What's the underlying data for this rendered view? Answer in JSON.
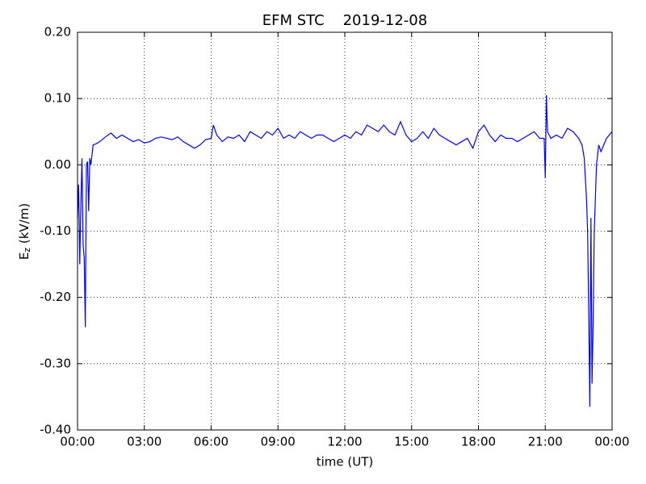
{
  "chart_data": {
    "type": "line",
    "title": "EFM STC    2019-12-08",
    "xlabel": "time (UT)",
    "ylabel": "E",
    "ylabel_subscript": "z",
    "ylabel_unit": " (kV/m)",
    "xlim": [
      0,
      24
    ],
    "xticks": [
      {
        "value": 0,
        "label": "00:00"
      },
      {
        "value": 3,
        "label": "03:00"
      },
      {
        "value": 6,
        "label": "06:00"
      },
      {
        "value": 9,
        "label": "09:00"
      },
      {
        "value": 12,
        "label": "12:00"
      },
      {
        "value": 15,
        "label": "15:00"
      },
      {
        "value": 18,
        "label": "18:00"
      },
      {
        "value": 21,
        "label": "21:00"
      },
      {
        "value": 24,
        "label": "00:00"
      }
    ],
    "ylim": [
      -0.4,
      0.2
    ],
    "yticks": [
      {
        "value": -0.4,
        "label": "-0.40"
      },
      {
        "value": -0.3,
        "label": "-0.30"
      },
      {
        "value": -0.2,
        "label": "-0.20"
      },
      {
        "value": -0.1,
        "label": "-0.10"
      },
      {
        "value": 0,
        "label": "0.00"
      },
      {
        "value": 0.1,
        "label": "0.10"
      },
      {
        "value": 0.2,
        "label": "0.20"
      }
    ],
    "grid": true,
    "x": [
      0,
      0.05,
      0.1,
      0.15,
      0.2,
      0.25,
      0.3,
      0.35,
      0.4,
      0.45,
      0.5,
      0.55,
      0.6,
      0.7,
      0.85,
      1,
      1.25,
      1.5,
      1.75,
      2,
      2.25,
      2.5,
      2.75,
      3,
      3.25,
      3.5,
      3.75,
      4,
      4.25,
      4.5,
      4.75,
      5,
      5.25,
      5.5,
      5.75,
      6,
      6.1,
      6.25,
      6.5,
      6.75,
      7,
      7.25,
      7.5,
      7.75,
      8,
      8.25,
      8.5,
      8.75,
      9,
      9.25,
      9.5,
      9.75,
      10,
      10.25,
      10.5,
      10.75,
      11,
      11.25,
      11.5,
      11.75,
      12,
      12.25,
      12.5,
      12.75,
      13,
      13.25,
      13.5,
      13.75,
      14,
      14.25,
      14.5,
      14.75,
      15,
      15.25,
      15.5,
      15.75,
      16,
      16.25,
      16.5,
      16.75,
      17,
      17.25,
      17.5,
      17.75,
      18,
      18.25,
      18.5,
      18.75,
      19,
      19.25,
      19.5,
      19.75,
      20,
      20.25,
      20.5,
      20.75,
      20.95,
      21,
      21.05,
      21.1,
      21.25,
      21.5,
      21.75,
      22,
      22.25,
      22.5,
      22.65,
      22.75,
      22.85,
      22.9,
      22.95,
      23,
      23.05,
      23.1,
      23.15,
      23.2,
      23.3,
      23.4,
      23.5,
      23.75,
      24
    ],
    "series": [
      {
        "color": "#0000ff",
        "values": [
          -0.08,
          -0.03,
          -0.15,
          -0.06,
          0.01,
          -0.12,
          -0.14,
          -0.245,
          0.0,
          0.005,
          -0.07,
          0.01,
          0.0,
          0.03,
          0.032,
          0.035,
          0.042,
          0.048,
          0.04,
          0.045,
          0.04,
          0.035,
          0.038,
          0.033,
          0.035,
          0.04,
          0.042,
          0.04,
          0.038,
          0.042,
          0.035,
          0.03,
          0.025,
          0.03,
          0.038,
          0.04,
          0.06,
          0.045,
          0.035,
          0.042,
          0.04,
          0.045,
          0.035,
          0.05,
          0.045,
          0.04,
          0.05,
          0.045,
          0.055,
          0.04,
          0.045,
          0.04,
          0.05,
          0.045,
          0.04,
          0.045,
          0.045,
          0.04,
          0.035,
          0.04,
          0.045,
          0.04,
          0.05,
          0.045,
          0.06,
          0.055,
          0.05,
          0.06,
          0.05,
          0.045,
          0.065,
          0.045,
          0.035,
          0.04,
          0.05,
          0.04,
          0.055,
          0.045,
          0.04,
          0.035,
          0.03,
          0.035,
          0.04,
          0.025,
          0.05,
          0.06,
          0.045,
          0.035,
          0.045,
          0.04,
          0.04,
          0.035,
          0.04,
          0.045,
          0.05,
          0.04,
          0.04,
          -0.02,
          0.105,
          0.05,
          0.04,
          0.045,
          0.04,
          0.055,
          0.05,
          0.04,
          0.03,
          0.01,
          -0.05,
          -0.1,
          -0.22,
          -0.365,
          -0.08,
          -0.33,
          -0.24,
          -0.1,
          0.0,
          0.03,
          0.02,
          0.04,
          0.05
        ]
      }
    ]
  }
}
